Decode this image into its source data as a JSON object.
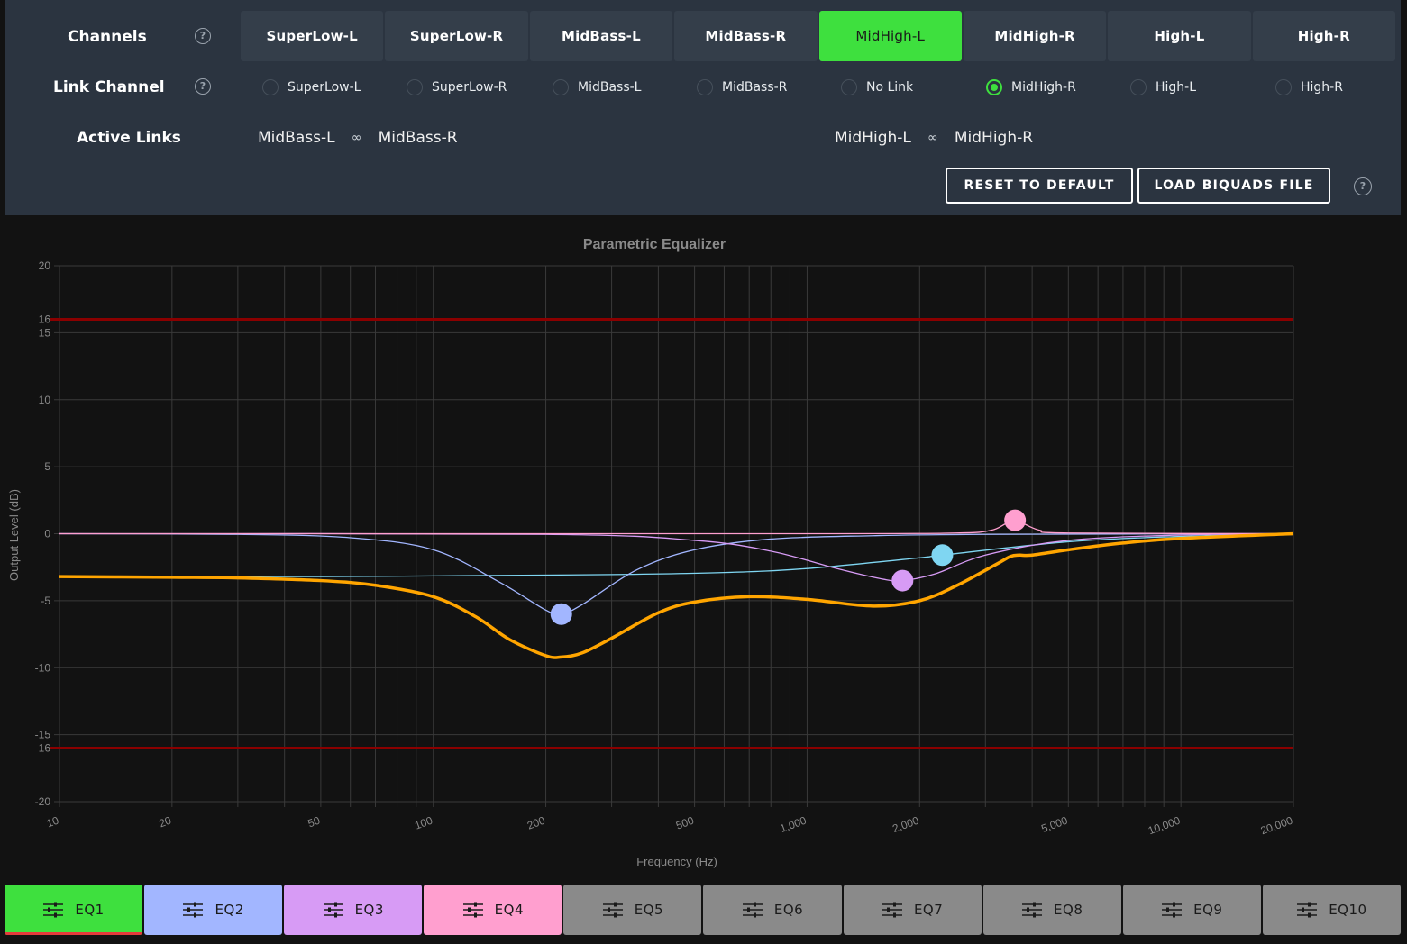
{
  "channels": {
    "label": "Channels",
    "tabs": [
      "SuperLow-L",
      "SuperLow-R",
      "MidBass-L",
      "MidBass-R",
      "MidHigh-L",
      "MidHigh-R",
      "High-L",
      "High-R"
    ],
    "active_index": 4
  },
  "link_channel": {
    "label": "Link Channel",
    "options": [
      "SuperLow-L",
      "SuperLow-R",
      "MidBass-L",
      "MidBass-R",
      "No Link",
      "MidHigh-R",
      "High-L",
      "High-R"
    ],
    "selected_index": 5
  },
  "active_links": {
    "label": "Active Links",
    "links": [
      {
        "a": "MidBass-L",
        "b": "MidBass-R"
      },
      {
        "a": "MidHigh-L",
        "b": "MidHigh-R"
      }
    ]
  },
  "buttons": {
    "reset": "RESET TO DEFAULT",
    "load": "LOAD BIQUADS FILE"
  },
  "colors": {
    "accent": "#3ee03e",
    "panel": "#2b3440",
    "eq1": "#3ee03e",
    "eq2": "#a2b6ff",
    "eq3": "#d79bf5",
    "eq4": "#ff9fcf",
    "eq_inactive": "#8a8a8a",
    "combined": "#ffa500",
    "limit": "#8b0000",
    "eq1_curve": "#7fd6f2"
  },
  "chart_data": {
    "type": "line",
    "title": "Parametric Equalizer",
    "xlabel": "Frequency (Hz)",
    "ylabel": "Output Level (dB)",
    "x_scale": "log",
    "xlim": [
      10,
      20000
    ],
    "ylim": [
      -20,
      20
    ],
    "x_ticks": [
      10,
      20,
      50,
      100,
      200,
      500,
      1000,
      2000,
      5000,
      10000,
      20000
    ],
    "x_tick_labels": [
      "10",
      "20",
      "50",
      "100",
      "200",
      "500",
      "1,000",
      "2,000",
      "5,000",
      "10,000",
      "20,000"
    ],
    "y_ticks": [
      20,
      16,
      15,
      10,
      5,
      0,
      -5,
      -10,
      -15,
      -16,
      -20
    ],
    "limit_lines": [
      16,
      -16
    ],
    "grid": true,
    "filters": [
      {
        "name": "EQ1",
        "freq": 2300,
        "gain": -1.6,
        "color": "#7fd6f2"
      },
      {
        "name": "EQ2",
        "freq": 220,
        "gain": -6.0,
        "color": "#a2b6ff"
      },
      {
        "name": "EQ3",
        "freq": 1800,
        "gain": -3.5,
        "color": "#d79bf5"
      },
      {
        "name": "EQ4",
        "freq": 3600,
        "gain": 1.0,
        "color": "#ff9fcf"
      }
    ],
    "series": [
      {
        "color": "#7fd6f2",
        "x": [
          10,
          50,
          100,
          300,
          600,
          1000,
          2000,
          2300,
          5000,
          10000,
          20000
        ],
        "y": [
          -3.2,
          -3.2,
          -3.15,
          -3.05,
          -2.9,
          -2.6,
          -1.8,
          -1.6,
          -0.6,
          -0.2,
          0
        ]
      },
      {
        "color": "#a2b6ff",
        "x": [
          10,
          30,
          60,
          100,
          150,
          200,
          220,
          250,
          350,
          500,
          800,
          1500,
          3000,
          20000
        ],
        "y": [
          0,
          -0.05,
          -0.3,
          -1.2,
          -3.6,
          -5.7,
          -6.0,
          -5.3,
          -2.7,
          -1.2,
          -0.4,
          -0.15,
          -0.05,
          0
        ]
      },
      {
        "color": "#d79bf5",
        "x": [
          10,
          200,
          500,
          800,
          1200,
          1600,
          1800,
          2200,
          3000,
          5000,
          10000,
          20000
        ],
        "y": [
          0,
          -0.05,
          -0.5,
          -1.3,
          -2.6,
          -3.4,
          -3.5,
          -3.0,
          -1.6,
          -0.5,
          -0.1,
          0
        ]
      },
      {
        "color": "#ff9fcf",
        "x": [
          10,
          1000,
          2500,
          3100,
          3400,
          3600,
          3800,
          4200,
          5000,
          20000
        ],
        "y": [
          0,
          0,
          0.05,
          0.25,
          0.75,
          1.0,
          0.75,
          0.25,
          0.05,
          0
        ]
      },
      {
        "color": "#ffa500",
        "x": [
          10,
          20,
          30,
          50,
          70,
          100,
          130,
          160,
          200,
          220,
          250,
          300,
          400,
          500,
          700,
          1000,
          1500,
          2000,
          2500,
          3200,
          3500,
          3700,
          4000,
          5000,
          7000,
          10000,
          20000
        ],
        "y": [
          -3.2,
          -3.25,
          -3.3,
          -3.5,
          -3.85,
          -4.7,
          -6.2,
          -7.9,
          -9.1,
          -9.2,
          -8.9,
          -7.8,
          -5.9,
          -5.1,
          -4.7,
          -4.9,
          -5.4,
          -5.0,
          -3.9,
          -2.3,
          -1.7,
          -1.6,
          -1.6,
          -1.2,
          -0.7,
          -0.35,
          0
        ]
      }
    ]
  },
  "eq_tabs": [
    "EQ1",
    "EQ2",
    "EQ3",
    "EQ4",
    "EQ5",
    "EQ6",
    "EQ7",
    "EQ8",
    "EQ9",
    "EQ10"
  ],
  "eq_active_index": 0
}
